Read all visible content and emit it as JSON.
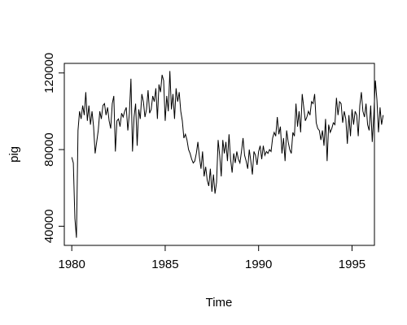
{
  "chart_data": {
    "type": "line",
    "title": "",
    "xlabel": "Time",
    "ylabel": "pig",
    "xlim": [
      1979.6,
      1996.2
    ],
    "ylim": [
      30000,
      125000
    ],
    "x_ticks": [
      1980,
      1985,
      1990,
      1995
    ],
    "y_ticks": [
      40000,
      80000,
      120000
    ],
    "grid": false,
    "legend": "none",
    "line_color": "#000000",
    "start": 1980.0,
    "frequency": 12,
    "series": [
      {
        "values": [
          76000,
          73000,
          44000,
          34000,
          90000,
          100000,
          96000,
          103000,
          98000,
          110000,
          95000,
          103000,
          93000,
          100000,
          92000,
          78000,
          84000,
          90000,
          100000,
          96000,
          103000,
          104000,
          98000,
          102000,
          95000,
          91000,
          104000,
          108000,
          79000,
          95000,
          96000,
          92000,
          99000,
          97000,
          100000,
          102000,
          90000,
          99000,
          117000,
          79000,
          97000,
          104000,
          82000,
          101000,
          96000,
          109000,
          105000,
          97000,
          101000,
          111000,
          99000,
          101000,
          108000,
          105000,
          112000,
          96000,
          114000,
          110000,
          119000,
          116000,
          95000,
          108000,
          100000,
          121000,
          101000,
          109000,
          96000,
          112000,
          105000,
          110000,
          100000,
          95000,
          86000,
          88000,
          85000,
          80000,
          78000,
          75000,
          73000,
          74000,
          78000,
          84000,
          76000,
          70000,
          79000,
          66000,
          71000,
          64000,
          61000,
          70000,
          58000,
          67000,
          57000,
          63000,
          85000,
          77000,
          66000,
          85000,
          78000,
          84000,
          74000,
          88000,
          75000,
          68000,
          78000,
          73000,
          79000,
          75000,
          73000,
          79000,
          86000,
          77000,
          74000,
          70000,
          80000,
          74000,
          67000,
          79000,
          77000,
          72000,
          79000,
          82000,
          75000,
          82000,
          77000,
          79000,
          78000,
          80000,
          79000,
          86000,
          89000,
          87000,
          97000,
          88000,
          92000,
          78000,
          86000,
          74000,
          90000,
          84000,
          80000,
          78000,
          89000,
          87000,
          104000,
          92000,
          100000,
          89000,
          109000,
          102000,
          95000,
          97000,
          100000,
          98000,
          105000,
          104000,
          109000,
          94000,
          91000,
          90000,
          85000,
          90000,
          82000,
          96000,
          74000,
          93000,
          89000,
          91000,
          94000,
          93000,
          107000,
          98000,
          105000,
          104000,
          94000,
          100000,
          96000,
          83000,
          98000,
          87000,
          101000,
          93000,
          100000,
          98000,
          87000,
          103000,
          110000,
          100000,
          97000,
          104000,
          93000,
          90000,
          103000,
          84000,
          98000,
          116000,
          106000,
          89000,
          102000,
          93000,
          98000
        ]
      }
    ]
  }
}
